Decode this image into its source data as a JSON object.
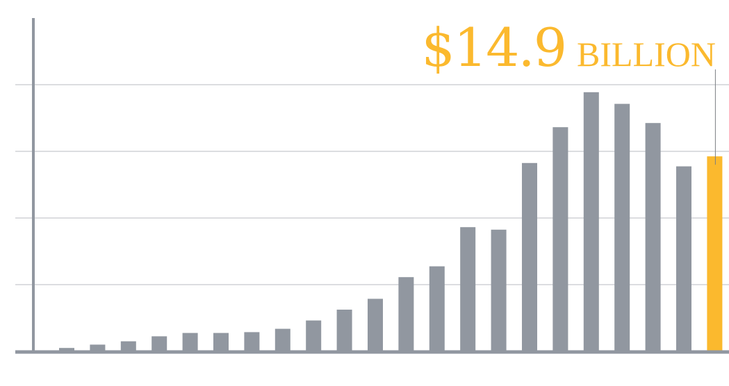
{
  "chart_data": {
    "type": "bar",
    "values": [
      0.4,
      0.8,
      1.2,
      1.8,
      2.2,
      2.2,
      2.3,
      2.7,
      3.7,
      5.0,
      6.3,
      8.9,
      10.2,
      14.9,
      14.6,
      22.6,
      26.9,
      31.1,
      29.7,
      27.4,
      22.2,
      23.4
    ],
    "highlight_index": 21,
    "ylim": [
      0,
      40
    ],
    "yticks": [
      0,
      8,
      16,
      24,
      32
    ],
    "grid": true,
    "legend": "none",
    "callout": {
      "amount": "$14.9",
      "unit": "BILLION"
    }
  },
  "colors": {
    "bar": "#9197a0",
    "highlight": "#fbb92e",
    "axis": "#9197a0",
    "grid": "#b8bbc0",
    "callout_text": "#fbb92e",
    "leader": "#7a7e84"
  }
}
